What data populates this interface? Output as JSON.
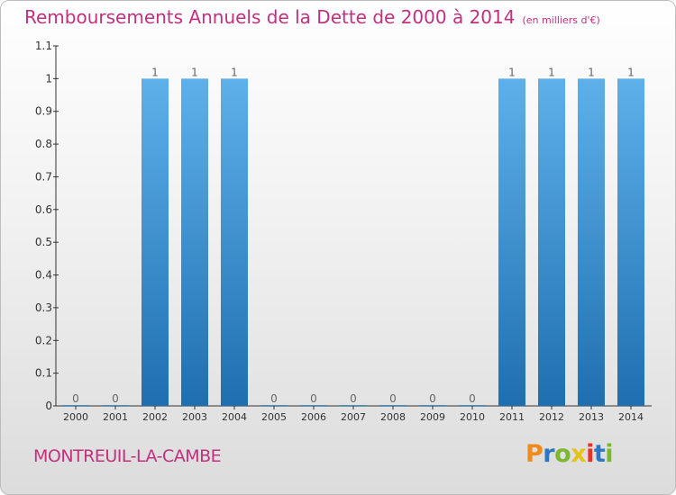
{
  "title": "Remboursements Annuels de la Dette de 2000 à 2014",
  "unit": "(en milliers d'€)",
  "commune": "MONTREUIL-LA-CAMBE",
  "logo": {
    "letters": [
      "P",
      "r",
      "o",
      "x",
      "i",
      "t",
      "i"
    ],
    "colors": [
      "#f08a1d",
      "#2e78c2",
      "#7cb82f",
      "#e8c317",
      "#e5332a",
      "#2e78c2",
      "#7cb82f"
    ]
  },
  "colors": {
    "title": "#c2307e",
    "bar_top": "#5eb0ea",
    "bar_bottom": "#1f6fb0",
    "axis": "#333333"
  },
  "chart_data": {
    "type": "bar",
    "categories": [
      "2000",
      "2001",
      "2002",
      "2003",
      "2004",
      "2005",
      "2006",
      "2007",
      "2008",
      "2009",
      "2010",
      "2011",
      "2012",
      "2013",
      "2014"
    ],
    "values": [
      0,
      0,
      1,
      1,
      1,
      0,
      0,
      0,
      0,
      0,
      0,
      1,
      1,
      1,
      1
    ],
    "data_labels": [
      "0",
      "0",
      "1",
      "1",
      "1",
      "0",
      "0",
      "0",
      "0",
      "0",
      "0",
      "1",
      "1",
      "1",
      "1"
    ],
    "ylim": [
      0,
      1.1
    ],
    "yticks": [
      0,
      0.1,
      0.2,
      0.3,
      0.4,
      0.5,
      0.6,
      0.7,
      0.8,
      0.9,
      1,
      1.1
    ],
    "ytick_labels": [
      "0",
      "0.1",
      "0.2",
      "0.3",
      "0.4",
      "0.5",
      "0.6",
      "0.7",
      "0.8",
      "0.9",
      "1",
      "1.1"
    ],
    "grid": false
  }
}
